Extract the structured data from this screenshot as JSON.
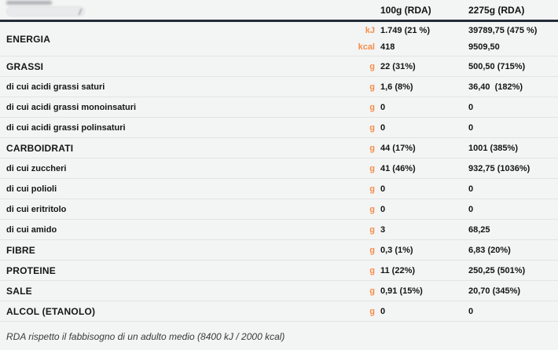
{
  "colors": {
    "accent_orange": "#F68E4B",
    "header_line": "#232B37",
    "divider": "#E1E4E6",
    "background": "#F3F4F4",
    "text": "#1C1C1C"
  },
  "header": {
    "col1": "100g (RDA)",
    "col2": "2275g (RDA)"
  },
  "table": {
    "rows": [
      {
        "label": "ENERGIA",
        "type": "main",
        "lines": [
          {
            "unit": "kJ",
            "v1": "1.749 (21 %)",
            "v2": "39789,75 (475 %)"
          },
          {
            "unit": "kcal",
            "v1": "418",
            "v2": "9509,50"
          }
        ]
      },
      {
        "label": "GRASSI",
        "type": "main",
        "unit": "g",
        "v1": "22 (31%)",
        "v2": "500,50 (715%)"
      },
      {
        "label": "di cui acidi grassi saturi",
        "type": "sub",
        "unit": "g",
        "v1": "1,6 (8%)",
        "v2": "36,40  (182%)"
      },
      {
        "label": "di cui acidi grassi monoinsaturi",
        "type": "sub",
        "unit": "g",
        "v1": "0",
        "v2": "0"
      },
      {
        "label": "di cui acidi grassi polinsaturi",
        "type": "sub",
        "unit": "g",
        "v1": "0",
        "v2": "0"
      },
      {
        "label": "CARBOIDRATI",
        "type": "main",
        "unit": "g",
        "v1": "44 (17%)",
        "v2": "1001 (385%)"
      },
      {
        "label": "di cui zuccheri",
        "type": "sub",
        "unit": "g",
        "v1": "41 (46%)",
        "v2": "932,75 (1036%)"
      },
      {
        "label": "di cui polioli",
        "type": "sub",
        "unit": "g",
        "v1": "0",
        "v2": "0"
      },
      {
        "label": "di cui eritritolo",
        "type": "sub",
        "unit": "g",
        "v1": "0",
        "v2": "0"
      },
      {
        "label": "di cui amido",
        "type": "sub",
        "unit": "g",
        "v1": "3",
        "v2": "68,25"
      },
      {
        "label": "FIBRE",
        "type": "main",
        "unit": "g",
        "v1": "0,3 (1%)",
        "v2": "6,83 (20%)"
      },
      {
        "label": "PROTEINE",
        "type": "main",
        "unit": "g",
        "v1": "11 (22%)",
        "v2": "250,25 (501%)"
      },
      {
        "label": "SALE",
        "type": "main",
        "unit": "g",
        "v1": "0,91 (15%)",
        "v2": "20,70 (345%)"
      },
      {
        "label": "ALCOL (ETANOLO)",
        "type": "main",
        "unit": "g",
        "v1": "0",
        "v2": "0"
      }
    ]
  },
  "footer": {
    "note": "RDA rispetto il fabbisogno di un adulto medio (8400 kJ / 2000 kcal)"
  }
}
